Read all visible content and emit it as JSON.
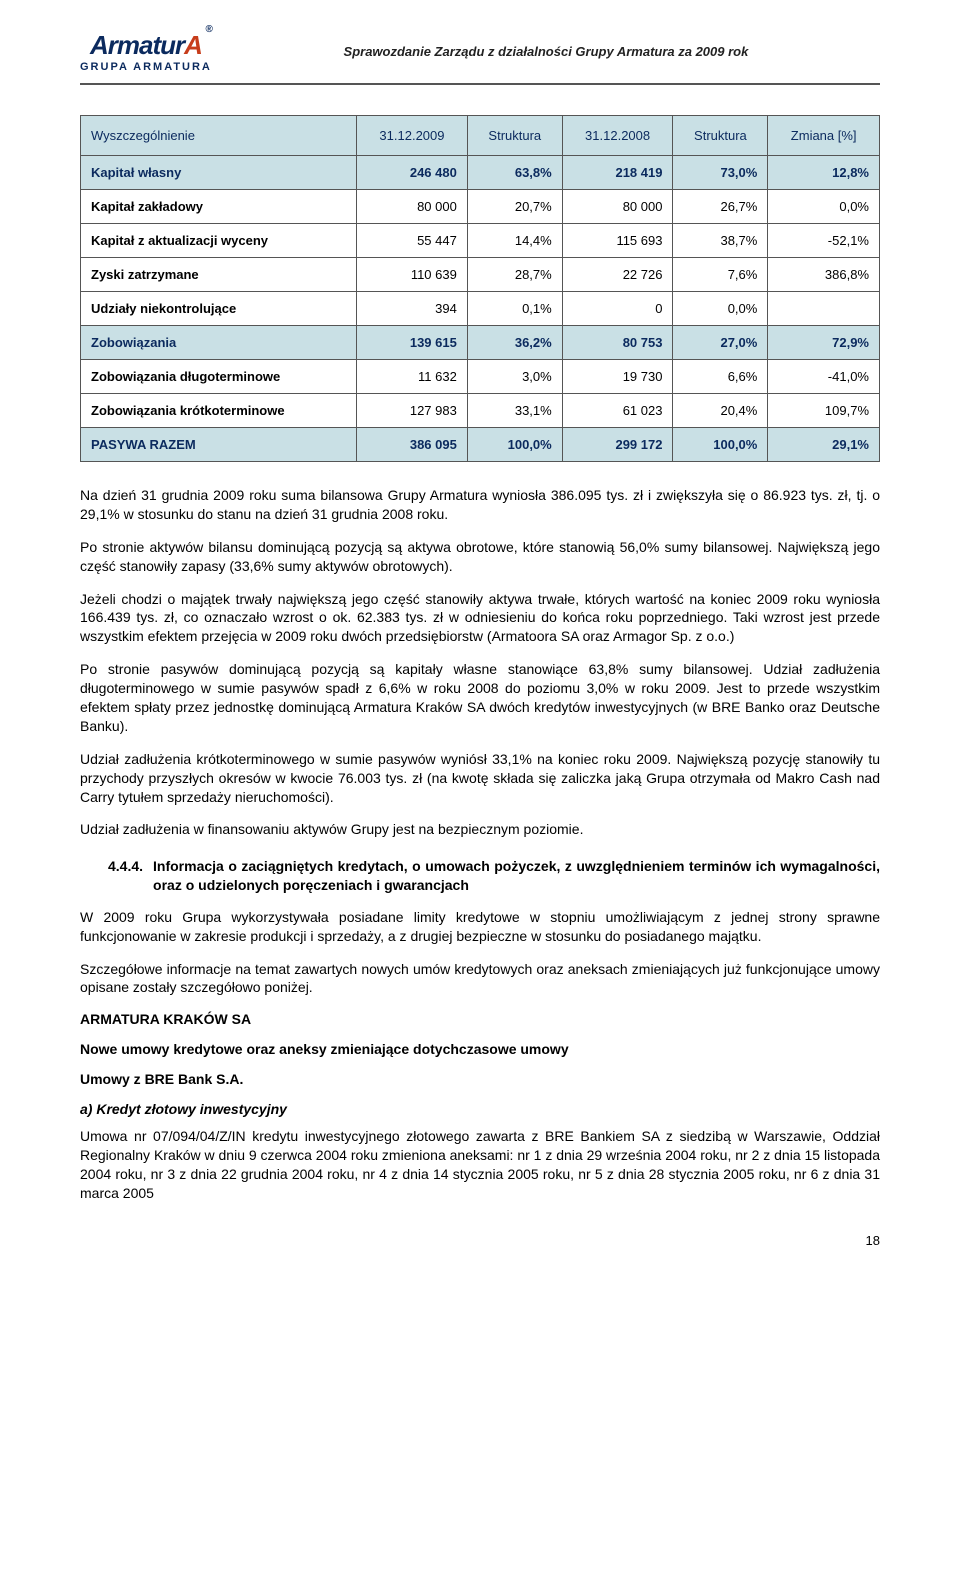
{
  "header": {
    "logo_main": "Armatur",
    "logo_accent": "A",
    "logo_reg": "®",
    "logo_sub": "GRUPA ARMATURA",
    "title": "Sprawozdanie Zarządu z działalności Grupy Armatura za 2009 rok"
  },
  "table": {
    "styling": {
      "header_bg": "#c9e0e5",
      "header_color": "#0b2a5e",
      "border_color": "#555555",
      "font_size": 13
    },
    "columns": [
      "Wyszczególnienie",
      "31.12.2009",
      "Struktura",
      "31.12.2008",
      "Struktura",
      "Zmiana [%]"
    ],
    "rows": [
      {
        "label": "Kapitał własny",
        "c1": "246 480",
        "c2": "63,8%",
        "c3": "218 419",
        "c4": "73,0%",
        "c5": "12,8%",
        "hl": true
      },
      {
        "label": "Kapitał zakładowy",
        "c1": "80 000",
        "c2": "20,7%",
        "c3": "80 000",
        "c4": "26,7%",
        "c5": "0,0%"
      },
      {
        "label": "Kapitał z aktualizacji wyceny",
        "c1": "55 447",
        "c2": "14,4%",
        "c3": "115 693",
        "c4": "38,7%",
        "c5": "-52,1%"
      },
      {
        "label": "Zyski zatrzymane",
        "c1": "110 639",
        "c2": "28,7%",
        "c3": "22 726",
        "c4": "7,6%",
        "c5": "386,8%"
      },
      {
        "label": "Udziały niekontrolujące",
        "c1": "394",
        "c2": "0,1%",
        "c3": "0",
        "c4": "0,0%",
        "c5": ""
      },
      {
        "label": "Zobowiązania",
        "c1": "139 615",
        "c2": "36,2%",
        "c3": "80 753",
        "c4": "27,0%",
        "c5": "72,9%",
        "hl": true
      },
      {
        "label": "Zobowiązania długoterminowe",
        "c1": "11 632",
        "c2": "3,0%",
        "c3": "19 730",
        "c4": "6,6%",
        "c5": "-41,0%"
      },
      {
        "label": "Zobowiązania krótkoterminowe",
        "c1": "127 983",
        "c2": "33,1%",
        "c3": "61 023",
        "c4": "20,4%",
        "c5": "109,7%"
      },
      {
        "label": "PASYWA RAZEM",
        "c1": "386 095",
        "c2": "100,0%",
        "c3": "299 172",
        "c4": "100,0%",
        "c5": "29,1%",
        "hl": true
      }
    ]
  },
  "paras": {
    "p1": "Na dzień 31 grudnia 2009 roku suma bilansowa Grupy Armatura wyniosła 386.095 tys. zł i zwiększyła się o 86.923 tys. zł, tj. o 29,1% w stosunku do stanu na dzień 31 grudnia 2008 roku.",
    "p2": "Po stronie aktywów bilansu dominującą pozycją są aktywa obrotowe, które stanowią 56,0% sumy bilansowej. Największą jego część stanowiły zapasy (33,6% sumy aktywów obrotowych).",
    "p3": "Jeżeli chodzi o majątek trwały największą jego część stanowiły aktywa trwałe, których wartość na koniec 2009 roku wyniosła 166.439 tys. zł, co oznaczało wzrost o ok. 62.383 tys. zł w odniesieniu do końca roku poprzedniego. Taki wzrost jest przede wszystkim efektem przejęcia w 2009 roku dwóch przedsiębiorstw (Armatoora SA oraz Armagor Sp. z o.o.)",
    "p4": "Po stronie pasywów dominującą pozycją są kapitały własne stanowiące 63,8% sumy bilansowej. Udział zadłużenia długoterminowego w sumie pasywów spadł z 6,6% w roku 2008 do poziomu 3,0% w roku 2009. Jest to przede wszystkim efektem spłaty przez jednostkę dominującą Armatura Kraków SA dwóch kredytów inwestycyjnych (w BRE Banko oraz Deutsche Banku).",
    "p5": "Udział zadłużenia krótkoterminowego w sumie pasywów wyniósł 33,1% na koniec roku 2009. Największą pozycję stanowiły tu przychody przyszłych okresów w kwocie 76.003 tys. zł (na kwotę składa się zaliczka jaką Grupa otrzymała od Makro Cash nad Carry tytułem sprzedaży nieruchomości).",
    "p6": "Udział zadłużenia w finansowaniu aktywów Grupy jest na bezpiecznym poziomie."
  },
  "section": {
    "num": "4.4.4.",
    "title": "Informacja o zaciągniętych kredytach, o umowach pożyczek, z uwzględnieniem terminów ich wymagalności, oraz o udzielonych poręczeniach i gwarancjach"
  },
  "paras2": {
    "p1": "W 2009 roku Grupa wykorzystywała posiadane limity kredytowe w stopniu umożliwiającym z jednej strony sprawne funkcjonowanie w zakresie produkcji i sprzedaży, a z drugiej bezpieczne w stosunku do posiadanego majątku.",
    "p2": "Szczegółowe informacje na temat zawartych nowych umów kredytowych oraz aneksach zmieniających już funkcjonujące umowy opisane zostały szczegółowo poniżej."
  },
  "headings": {
    "h1": "ARMATURA KRAKÓW SA",
    "h2": "Nowe umowy kredytowe oraz aneksy zmieniające dotychczasowe umowy",
    "h3": "Umowy z BRE Bank S.A.",
    "h4": "a) Kredyt złotowy inwestycyjny"
  },
  "paras3": {
    "p1": "Umowa nr 07/094/04/Z/IN kredytu inwestycyjnego złotowego zawarta z BRE Bankiem SA z siedzibą w Warszawie, Oddział Regionalny Kraków w dniu 9 czerwca 2004 roku zmieniona aneksami: nr 1 z dnia 29 września 2004 roku, nr 2 z dnia 15 listopada 2004 roku, nr 3 z dnia 22 grudnia 2004 roku, nr 4 z dnia 14 stycznia 2005 roku, nr 5 z dnia 28 stycznia 2005 roku, nr 6 z dnia 31 marca 2005"
  },
  "page_number": "18"
}
